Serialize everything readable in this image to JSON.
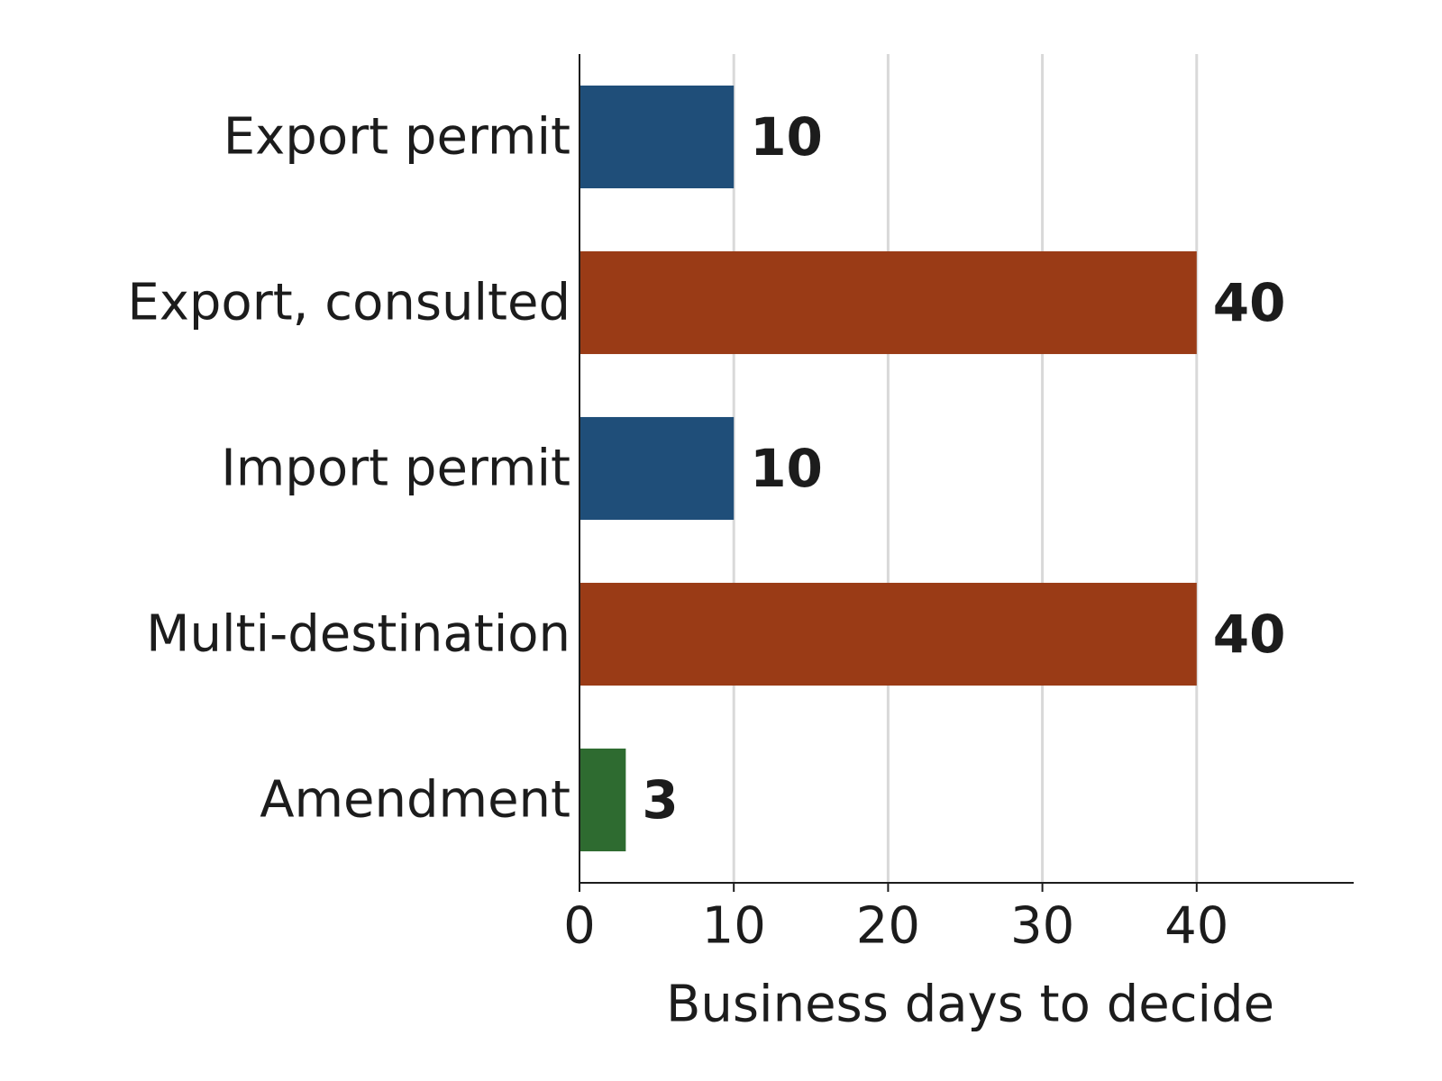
{
  "chart_data": {
    "type": "bar",
    "orientation": "horizontal",
    "categories": [
      "Export permit",
      "Export, consulted",
      "Import permit",
      "Multi-destination",
      "Amendment"
    ],
    "values": [
      10,
      40,
      10,
      40,
      3
    ],
    "data_labels": [
      "10",
      "40",
      "10",
      "40",
      "3"
    ],
    "bar_colors": [
      "#1f4e79",
      "#9a3b16",
      "#1f4e79",
      "#9a3b16",
      "#2e6b30"
    ],
    "xlabel": "Business days to decide",
    "ylabel": "",
    "xlim": [
      0,
      50
    ],
    "xticks": [
      0,
      10,
      20,
      30,
      40
    ],
    "xtick_labels": [
      "0",
      "10",
      "20",
      "30",
      "40"
    ],
    "grid": "vertical",
    "legend": "none"
  }
}
